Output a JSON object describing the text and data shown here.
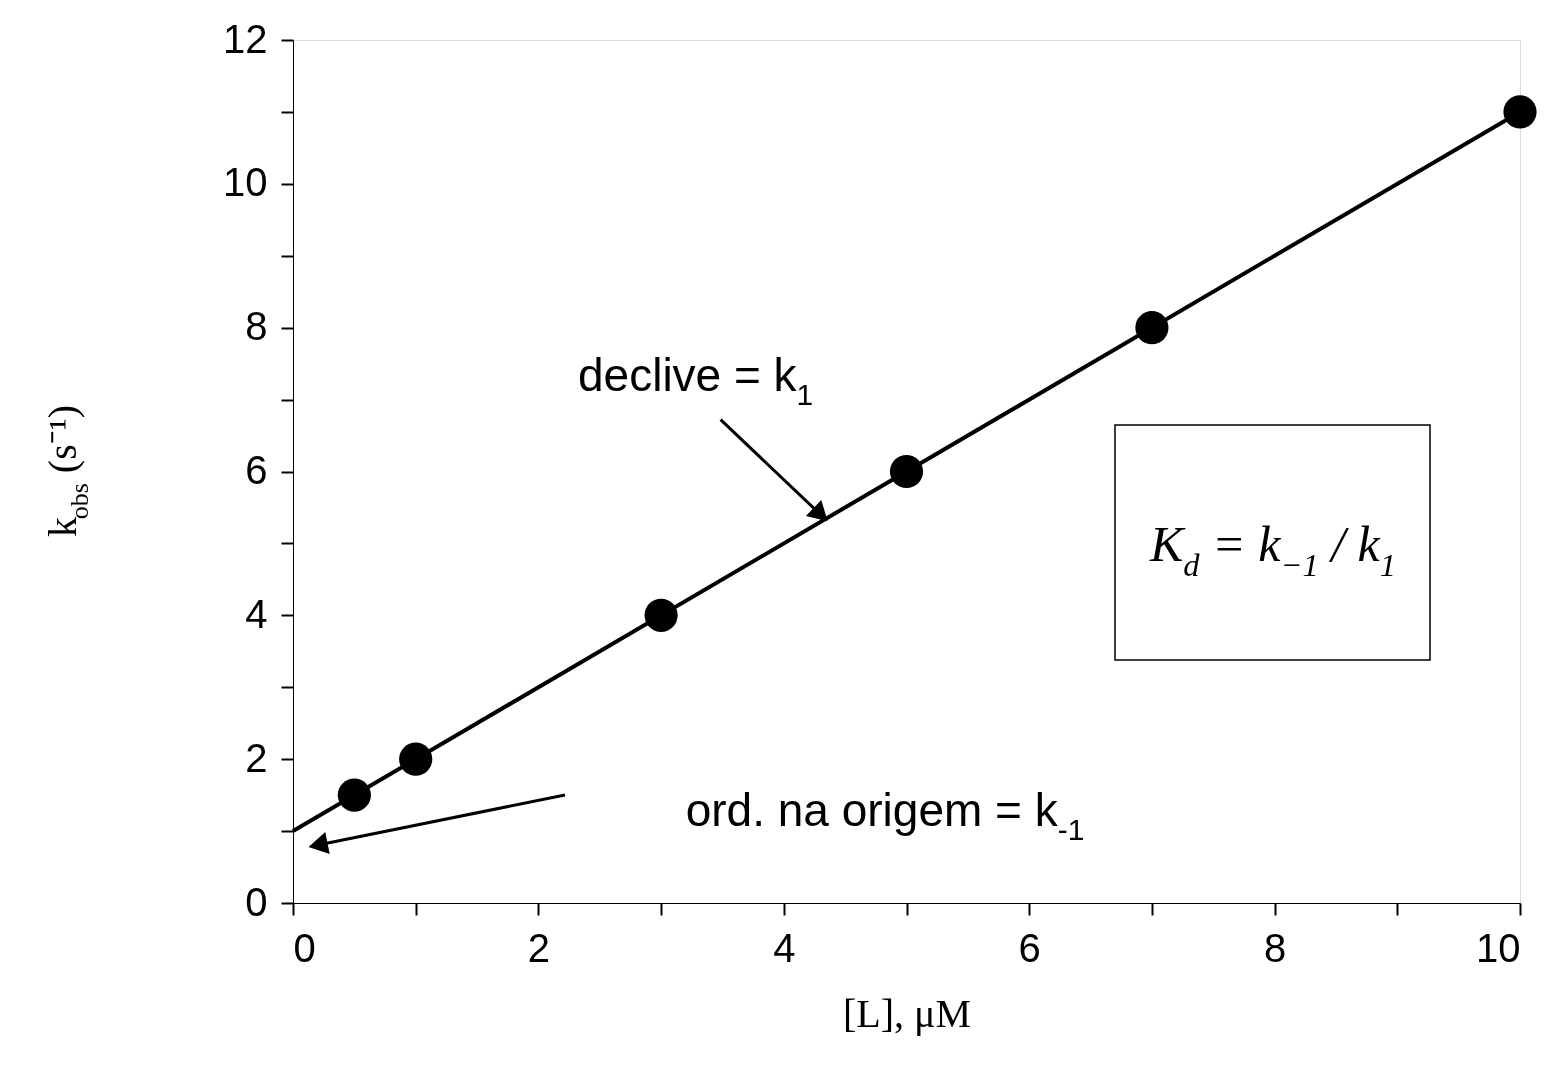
{
  "chart_data": {
    "type": "scatter",
    "xlabel": "[L], μM",
    "ylabel": "k$_{obs}$ (s⁻¹)",
    "x": [
      0.5,
      1,
      3,
      5,
      7,
      10
    ],
    "series": [
      {
        "color": "#000000",
        "values": [
          1.5,
          2,
          4,
          6,
          8,
          11
        ],
        "marker": "circle"
      },
      {
        "type": "line",
        "color": "#000000",
        "x": [
          0,
          10
        ],
        "values": [
          1,
          11
        ],
        "line_style": "solid",
        "marker": "none"
      }
    ],
    "xlim": [
      0,
      10
    ],
    "ylim": [
      0,
      12
    ],
    "xticks": [
      0,
      {
        "value": 1,
        "label": null
      },
      2,
      {
        "value": 3,
        "label": null
      },
      4,
      {
        "value": 5,
        "label": null
      },
      6,
      {
        "value": 7,
        "label": null
      },
      8,
      {
        "value": 9,
        "label": null
      },
      10
    ],
    "yticks": [
      0,
      {
        "value": 1,
        "label": null
      },
      2,
      {
        "value": 3,
        "label": null
      },
      4,
      {
        "value": 5,
        "label": null
      },
      6,
      {
        "value": 7,
        "label": null
      },
      8,
      {
        "value": 9,
        "label": null
      },
      10,
      {
        "value": 11,
        "label": null
      },
      12
    ],
    "annotations": [
      {
        "text": "declive = k$_{1}$",
        "x": 4.3,
        "y": 5.4
      },
      "ord. na origem = k$_{-1}$",
      "K$_{d}$ = k$_{−1}$ / k$_{1}$"
    ],
    "grid": false,
    "legend": false
  }
}
